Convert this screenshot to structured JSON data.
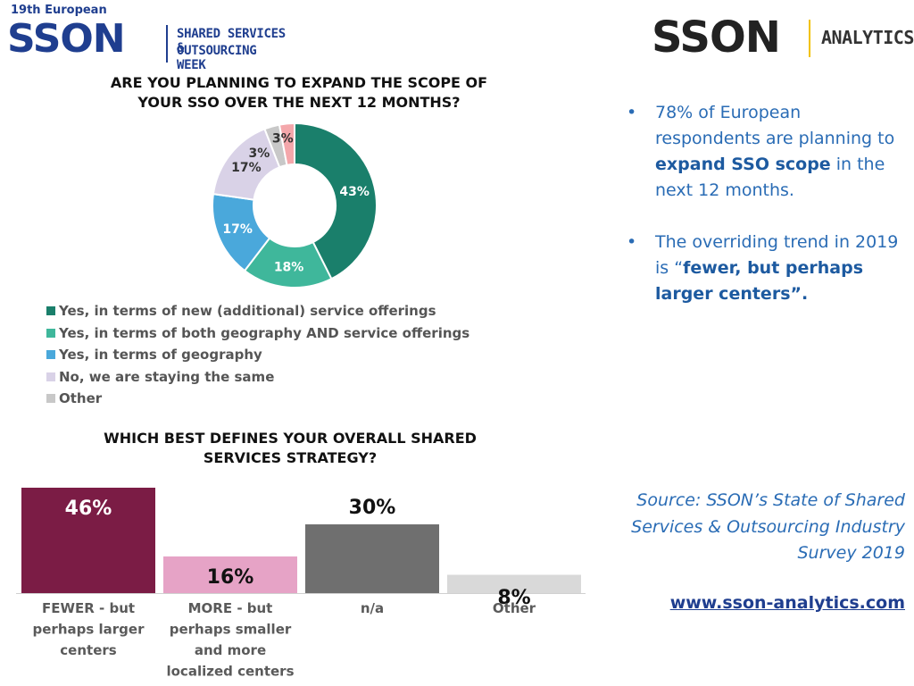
{
  "header": {
    "left_logo": {
      "kicker": "19th European",
      "wordmark": "SSON",
      "line1": "SHARED SERVICES &",
      "line2": "OUTSOURCING WEEK"
    },
    "right_logo": {
      "wordmark": "SSON",
      "tag": "ANALYTICS"
    }
  },
  "colors": {
    "teal_dark": "#1a7f6b",
    "teal_light": "#3fb79b",
    "blue": "#4aa8db",
    "lavender": "#d9d2e7",
    "gray": "#c8c8c8",
    "pink": "#f4a7ab",
    "maroon": "#7b1c45",
    "rose": "#e6a3c6",
    "bar_gray": "#6f6f6f",
    "bar_light": "#d9d9d9",
    "text_blue": "#2a6cb5"
  },
  "chart_data": [
    {
      "type": "pie",
      "title": "ARE YOU PLANNING TO EXPAND THE SCOPE OF YOUR SSO OVER THE NEXT 12 MONTHS?",
      "title_line1": "ARE YOU PLANNING TO EXPAND THE SCOPE OF",
      "title_line2": "YOUR SSO OVER THE NEXT 12 MONTHS?",
      "categories": [
        "Yes, in terms of new (additional) service offerings",
        "Yes, in terms of both geography AND service offerings",
        "Yes, in terms of geography",
        "No, we are staying the same",
        "Other",
        ""
      ],
      "values": [
        43,
        18,
        17,
        17,
        3,
        3
      ],
      "labels": [
        "43%",
        "18%",
        "17%",
        "17%",
        "3%",
        "3%"
      ],
      "colors": [
        "#1a7f6b",
        "#3fb79b",
        "#4aa8db",
        "#d9d2e7",
        "#c8c8c8",
        "#f4a7ab"
      ],
      "legend": [
        "Yes, in terms of new (additional) service offerings",
        "Yes, in terms of both geography AND service offerings",
        "Yes, in terms of geography",
        "No, we are staying the same",
        "Other"
      ],
      "legend_placement": "bottom-left"
    },
    {
      "type": "bar",
      "title": "WHICH BEST DEFINES YOUR OVERALL SHARED SERVICES STRATEGY?",
      "title_line1": "WHICH BEST DEFINES YOUR OVERALL SHARED",
      "title_line2": "SERVICES STRATEGY?",
      "categories": [
        [
          "FEWER - but",
          "perhaps larger",
          "centers"
        ],
        [
          "MORE - but",
          "perhaps smaller",
          "and more",
          "localized centers"
        ],
        [
          "n/a"
        ],
        [
          "Other"
        ]
      ],
      "values": [
        46,
        16,
        30,
        8
      ],
      "labels": [
        "46%",
        "16%",
        "30%",
        "8%"
      ],
      "colors": [
        "#7b1c45",
        "#e6a3c6",
        "#6f6f6f",
        "#d9d9d9"
      ],
      "ylim": [
        0,
        46
      ],
      "grid": false
    }
  ],
  "bullets": [
    {
      "pre": "78% of European respondents are planning to ",
      "bold": "expand SSO scope",
      "post": " in the next 12 months."
    },
    {
      "pre": "The overriding trend in 2019 is “",
      "bold": "fewer, but perhaps larger centers”.",
      "post": ""
    }
  ],
  "bullet_glyph": "•",
  "source": {
    "text": "Source: SSON’s State of Shared Services & Outsourcing Industry Survey 2019",
    "url": "www.sson-analytics.com"
  }
}
